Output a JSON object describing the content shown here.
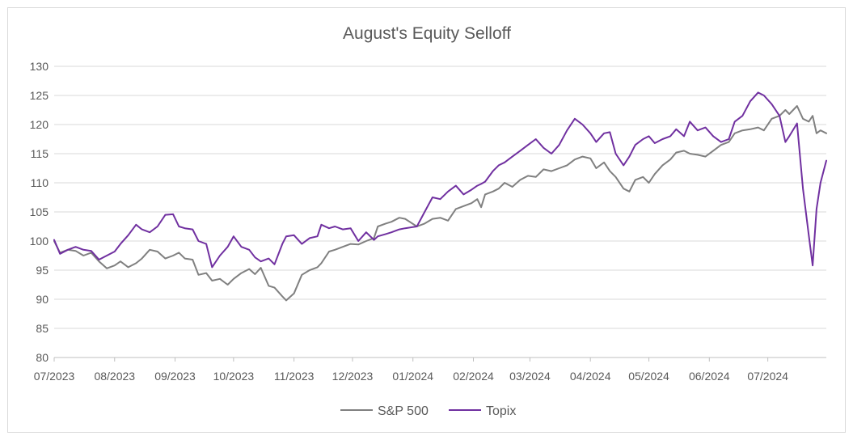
{
  "chart_data": {
    "type": "line",
    "title": "August's Equity Selloff",
    "xlabel": "",
    "ylabel": "",
    "ylim": [
      80,
      130
    ],
    "yticks": [
      80,
      85,
      90,
      95,
      100,
      105,
      110,
      115,
      120,
      125,
      130
    ],
    "xlim": [
      "2023-07-01",
      "2024-07-31"
    ],
    "xticks": [
      {
        "date": "2023-07-01",
        "label": "07/2023"
      },
      {
        "date": "2023-08-01",
        "label": "08/2023"
      },
      {
        "date": "2023-09-01",
        "label": "09/2023"
      },
      {
        "date": "2023-10-01",
        "label": "10/2023"
      },
      {
        "date": "2023-11-01",
        "label": "11/2023"
      },
      {
        "date": "2023-12-01",
        "label": "12/2023"
      },
      {
        "date": "2024-01-01",
        "label": "01/2024"
      },
      {
        "date": "2024-02-01",
        "label": "02/2024"
      },
      {
        "date": "2024-03-01",
        "label": "03/2024"
      },
      {
        "date": "2024-04-01",
        "label": "04/2024"
      },
      {
        "date": "2024-05-01",
        "label": "05/2024"
      },
      {
        "date": "2024-06-01",
        "label": "06/2024"
      },
      {
        "date": "2024-07-01",
        "label": "07/2024"
      }
    ],
    "grid": "horizontal",
    "legend_position": "bottom",
    "series": [
      {
        "name": "S&P 500",
        "color": "#808080",
        "points": [
          [
            "2023-07-01",
            100.0
          ],
          [
            "2023-07-04",
            98.0
          ],
          [
            "2023-07-08",
            98.5
          ],
          [
            "2023-07-12",
            98.3
          ],
          [
            "2023-07-16",
            97.5
          ],
          [
            "2023-07-20",
            98.0
          ],
          [
            "2023-07-24",
            96.5
          ],
          [
            "2023-07-28",
            95.3
          ],
          [
            "2023-08-01",
            95.8
          ],
          [
            "2023-08-04",
            96.5
          ],
          [
            "2023-08-08",
            95.5
          ],
          [
            "2023-08-12",
            96.2
          ],
          [
            "2023-08-15",
            97.0
          ],
          [
            "2023-08-19",
            98.5
          ],
          [
            "2023-08-23",
            98.2
          ],
          [
            "2023-08-27",
            97.0
          ],
          [
            "2023-08-31",
            97.5
          ],
          [
            "2023-09-03",
            98.0
          ],
          [
            "2023-09-06",
            97.0
          ],
          [
            "2023-09-10",
            96.8
          ],
          [
            "2023-09-13",
            94.2
          ],
          [
            "2023-09-17",
            94.5
          ],
          [
            "2023-09-20",
            93.2
          ],
          [
            "2023-09-24",
            93.5
          ],
          [
            "2023-09-28",
            92.5
          ],
          [
            "2023-10-01",
            93.5
          ],
          [
            "2023-10-05",
            94.5
          ],
          [
            "2023-10-09",
            95.2
          ],
          [
            "2023-10-12",
            94.3
          ],
          [
            "2023-10-15",
            95.4
          ],
          [
            "2023-10-19",
            92.3
          ],
          [
            "2023-10-22",
            92.0
          ],
          [
            "2023-10-26",
            90.5
          ],
          [
            "2023-10-28",
            89.8
          ],
          [
            "2023-11-01",
            91.0
          ],
          [
            "2023-11-05",
            94.2
          ],
          [
            "2023-11-09",
            95.0
          ],
          [
            "2023-11-13",
            95.5
          ],
          [
            "2023-11-15",
            96.2
          ],
          [
            "2023-11-19",
            98.2
          ],
          [
            "2023-11-22",
            98.5
          ],
          [
            "2023-11-26",
            99.0
          ],
          [
            "2023-11-30",
            99.5
          ],
          [
            "2023-12-04",
            99.4
          ],
          [
            "2023-12-08",
            100.0
          ],
          [
            "2023-12-12",
            100.5
          ],
          [
            "2023-12-14",
            102.5
          ],
          [
            "2023-12-18",
            103.0
          ],
          [
            "2023-12-21",
            103.3
          ],
          [
            "2023-12-25",
            104.0
          ],
          [
            "2023-12-28",
            103.8
          ],
          [
            "2024-01-03",
            102.5
          ],
          [
            "2024-01-07",
            103.0
          ],
          [
            "2024-01-11",
            103.8
          ],
          [
            "2024-01-15",
            104.0
          ],
          [
            "2024-01-19",
            103.5
          ],
          [
            "2024-01-23",
            105.5
          ],
          [
            "2024-01-27",
            106.0
          ],
          [
            "2024-01-31",
            106.5
          ],
          [
            "2024-02-03",
            107.2
          ],
          [
            "2024-02-05",
            105.8
          ],
          [
            "2024-02-07",
            108.0
          ],
          [
            "2024-02-11",
            108.5
          ],
          [
            "2024-02-14",
            109.0
          ],
          [
            "2024-02-17",
            110.0
          ],
          [
            "2024-02-21",
            109.3
          ],
          [
            "2024-02-25",
            110.5
          ],
          [
            "2024-02-29",
            111.2
          ],
          [
            "2024-03-04",
            111.0
          ],
          [
            "2024-03-08",
            112.3
          ],
          [
            "2024-03-12",
            112.0
          ],
          [
            "2024-03-16",
            112.5
          ],
          [
            "2024-03-20",
            113.0
          ],
          [
            "2024-03-24",
            114.0
          ],
          [
            "2024-03-28",
            114.5
          ],
          [
            "2024-04-01",
            114.2
          ],
          [
            "2024-04-04",
            112.5
          ],
          [
            "2024-04-08",
            113.5
          ],
          [
            "2024-04-11",
            112.0
          ],
          [
            "2024-04-14",
            111.0
          ],
          [
            "2024-04-18",
            109.0
          ],
          [
            "2024-04-21",
            108.5
          ],
          [
            "2024-04-24",
            110.5
          ],
          [
            "2024-04-28",
            111.0
          ],
          [
            "2024-05-01",
            110.0
          ],
          [
            "2024-05-04",
            111.5
          ],
          [
            "2024-05-08",
            113.0
          ],
          [
            "2024-05-12",
            114.0
          ],
          [
            "2024-05-15",
            115.2
          ],
          [
            "2024-05-19",
            115.5
          ],
          [
            "2024-05-22",
            115.0
          ],
          [
            "2024-05-26",
            114.8
          ],
          [
            "2024-05-30",
            114.5
          ],
          [
            "2024-06-03",
            115.5
          ],
          [
            "2024-06-07",
            116.5
          ],
          [
            "2024-06-11",
            117.0
          ],
          [
            "2024-06-14",
            118.5
          ],
          [
            "2024-06-18",
            119.0
          ],
          [
            "2024-06-22",
            119.2
          ],
          [
            "2024-06-26",
            119.5
          ],
          [
            "2024-06-29",
            119.0
          ],
          [
            "2024-07-03",
            121.0
          ],
          [
            "2024-07-07",
            121.5
          ],
          [
            "2024-07-10",
            122.5
          ],
          [
            "2024-07-12",
            121.8
          ],
          [
            "2024-07-16",
            123.2
          ],
          [
            "2024-07-19",
            121.0
          ],
          [
            "2024-07-22",
            120.5
          ],
          [
            "2024-07-24",
            121.5
          ],
          [
            "2024-07-26",
            118.5
          ],
          [
            "2024-07-28",
            119.0
          ],
          [
            "2024-07-31",
            118.5
          ]
        ]
      },
      {
        "name": "Topix",
        "color": "#7030a0",
        "points": [
          [
            "2023-07-01",
            100.2
          ],
          [
            "2023-07-04",
            97.8
          ],
          [
            "2023-07-08",
            98.5
          ],
          [
            "2023-07-12",
            99.0
          ],
          [
            "2023-07-16",
            98.5
          ],
          [
            "2023-07-20",
            98.3
          ],
          [
            "2023-07-24",
            96.8
          ],
          [
            "2023-07-28",
            97.5
          ],
          [
            "2023-08-01",
            98.2
          ],
          [
            "2023-08-04",
            99.5
          ],
          [
            "2023-08-08",
            101.0
          ],
          [
            "2023-08-12",
            102.8
          ],
          [
            "2023-08-15",
            102.0
          ],
          [
            "2023-08-19",
            101.5
          ],
          [
            "2023-08-23",
            102.5
          ],
          [
            "2023-08-27",
            104.5
          ],
          [
            "2023-08-31",
            104.6
          ],
          [
            "2023-09-03",
            102.5
          ],
          [
            "2023-09-06",
            102.2
          ],
          [
            "2023-09-10",
            102.0
          ],
          [
            "2023-09-13",
            100.0
          ],
          [
            "2023-09-17",
            99.5
          ],
          [
            "2023-09-20",
            95.5
          ],
          [
            "2023-09-24",
            97.5
          ],
          [
            "2023-09-28",
            99.0
          ],
          [
            "2023-10-01",
            100.8
          ],
          [
            "2023-10-05",
            99.0
          ],
          [
            "2023-10-09",
            98.5
          ],
          [
            "2023-10-12",
            97.2
          ],
          [
            "2023-10-15",
            96.5
          ],
          [
            "2023-10-19",
            97.0
          ],
          [
            "2023-10-22",
            96.0
          ],
          [
            "2023-10-26",
            99.5
          ],
          [
            "2023-10-28",
            100.8
          ],
          [
            "2023-11-01",
            101.0
          ],
          [
            "2023-11-05",
            99.5
          ],
          [
            "2023-11-09",
            100.5
          ],
          [
            "2023-11-13",
            100.8
          ],
          [
            "2023-11-15",
            102.8
          ],
          [
            "2023-11-19",
            102.2
          ],
          [
            "2023-11-22",
            102.5
          ],
          [
            "2023-11-26",
            102.0
          ],
          [
            "2023-11-30",
            102.2
          ],
          [
            "2023-12-04",
            100.0
          ],
          [
            "2023-12-08",
            101.5
          ],
          [
            "2023-12-12",
            100.2
          ],
          [
            "2023-12-14",
            100.8
          ],
          [
            "2023-12-18",
            101.2
          ],
          [
            "2023-12-21",
            101.5
          ],
          [
            "2023-12-25",
            102.0
          ],
          [
            "2023-12-28",
            102.2
          ],
          [
            "2024-01-03",
            102.5
          ],
          [
            "2024-01-07",
            105.0
          ],
          [
            "2024-01-11",
            107.5
          ],
          [
            "2024-01-15",
            107.2
          ],
          [
            "2024-01-19",
            108.5
          ],
          [
            "2024-01-23",
            109.5
          ],
          [
            "2024-01-27",
            108.0
          ],
          [
            "2024-01-31",
            108.8
          ],
          [
            "2024-02-03",
            109.5
          ],
          [
            "2024-02-05",
            109.8
          ],
          [
            "2024-02-07",
            110.2
          ],
          [
            "2024-02-11",
            112.0
          ],
          [
            "2024-02-14",
            113.0
          ],
          [
            "2024-02-17",
            113.5
          ],
          [
            "2024-02-21",
            114.5
          ],
          [
            "2024-02-25",
            115.5
          ],
          [
            "2024-02-29",
            116.5
          ],
          [
            "2024-03-04",
            117.5
          ],
          [
            "2024-03-08",
            116.0
          ],
          [
            "2024-03-12",
            115.0
          ],
          [
            "2024-03-16",
            116.5
          ],
          [
            "2024-03-20",
            119.0
          ],
          [
            "2024-03-24",
            121.0
          ],
          [
            "2024-03-28",
            120.0
          ],
          [
            "2024-04-01",
            118.5
          ],
          [
            "2024-04-04",
            117.0
          ],
          [
            "2024-04-08",
            118.5
          ],
          [
            "2024-04-11",
            118.7
          ],
          [
            "2024-04-14",
            115.0
          ],
          [
            "2024-04-18",
            113.0
          ],
          [
            "2024-04-21",
            114.5
          ],
          [
            "2024-04-24",
            116.5
          ],
          [
            "2024-04-28",
            117.5
          ],
          [
            "2024-05-01",
            118.0
          ],
          [
            "2024-05-04",
            116.8
          ],
          [
            "2024-05-08",
            117.5
          ],
          [
            "2024-05-12",
            118.0
          ],
          [
            "2024-05-15",
            119.2
          ],
          [
            "2024-05-19",
            118.0
          ],
          [
            "2024-05-22",
            120.5
          ],
          [
            "2024-05-26",
            119.0
          ],
          [
            "2024-05-30",
            119.5
          ],
          [
            "2024-06-03",
            118.0
          ],
          [
            "2024-06-07",
            117.0
          ],
          [
            "2024-06-11",
            117.5
          ],
          [
            "2024-06-14",
            120.5
          ],
          [
            "2024-06-18",
            121.5
          ],
          [
            "2024-06-22",
            124.0
          ],
          [
            "2024-06-26",
            125.5
          ],
          [
            "2024-06-29",
            125.0
          ],
          [
            "2024-07-03",
            123.5
          ],
          [
            "2024-07-07",
            121.5
          ],
          [
            "2024-07-10",
            117.0
          ],
          [
            "2024-07-12",
            118.0
          ],
          [
            "2024-07-16",
            120.2
          ],
          [
            "2024-07-19",
            109.0
          ],
          [
            "2024-07-22",
            101.0
          ],
          [
            "2024-07-24",
            95.8
          ],
          [
            "2024-07-26",
            105.5
          ],
          [
            "2024-07-28",
            110.0
          ],
          [
            "2024-07-31",
            113.8
          ]
        ]
      }
    ]
  }
}
